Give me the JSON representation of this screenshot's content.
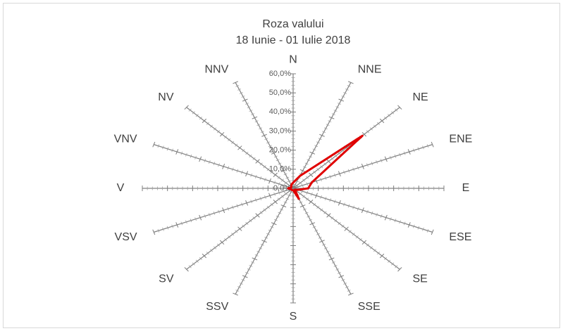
{
  "chart_data": {
    "type": "radar",
    "title": "Roza valului",
    "subtitle": "18 Iunie - 01 Iulie 2018",
    "categories": [
      "N",
      "NNE",
      "NE",
      "ENE",
      "E",
      "ESE",
      "SE",
      "SSE",
      "S",
      "SSV",
      "SV",
      "VSV",
      "V",
      "VNV",
      "NV",
      "NNV"
    ],
    "values": [
      3,
      7,
      39,
      8,
      6,
      2,
      1,
      6,
      1,
      1,
      1,
      1,
      2,
      1,
      1,
      2
    ],
    "color": "#e00000",
    "rlim": [
      0,
      60
    ],
    "rticks": [
      {
        "value": 0,
        "label": "0,0%"
      },
      {
        "value": 10,
        "label": "10,0%"
      },
      {
        "value": 20,
        "label": "20,0%"
      },
      {
        "value": 30,
        "label": "30,0%"
      },
      {
        "value": 40,
        "label": "40,0%"
      },
      {
        "value": 50,
        "label": "50,0%"
      },
      {
        "value": 60,
        "label": "60,0%"
      }
    ]
  }
}
